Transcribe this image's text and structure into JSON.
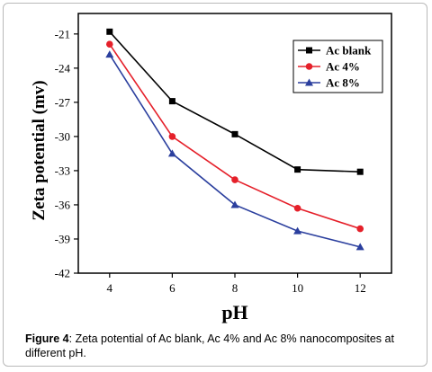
{
  "chart_data": {
    "type": "line",
    "xlabel": "pH",
    "ylabel": "Zeta potential (mv)",
    "x": [
      4,
      6,
      8,
      10,
      12
    ],
    "xticks": [
      4,
      6,
      8,
      10,
      12
    ],
    "yticks": [
      -21,
      -24,
      -27,
      -30,
      -33,
      -36,
      -39,
      -42
    ],
    "xlim": [
      3,
      13
    ],
    "ylim": [
      -42,
      -19.2
    ],
    "legend": "top-right",
    "grid": false,
    "series": [
      {
        "name": "Ac blank",
        "color": "#000000",
        "marker": "square",
        "values": [
          -20.8,
          -26.9,
          -29.8,
          -32.9,
          -33.1
        ]
      },
      {
        "name": "Ac 4%",
        "color": "#e5202a",
        "marker": "circle",
        "values": [
          -21.9,
          -30.0,
          -33.8,
          -36.3,
          -38.1
        ]
      },
      {
        "name": "Ac 8%",
        "color": "#2b3f9e",
        "marker": "triangle",
        "values": [
          -22.8,
          -31.5,
          -36.0,
          -38.3,
          -39.7
        ]
      }
    ]
  },
  "caption": {
    "label": "Figure 4",
    "text": ": Zeta potential of Ac blank, Ac 4% and Ac 8% nanocomposites at different pH."
  }
}
